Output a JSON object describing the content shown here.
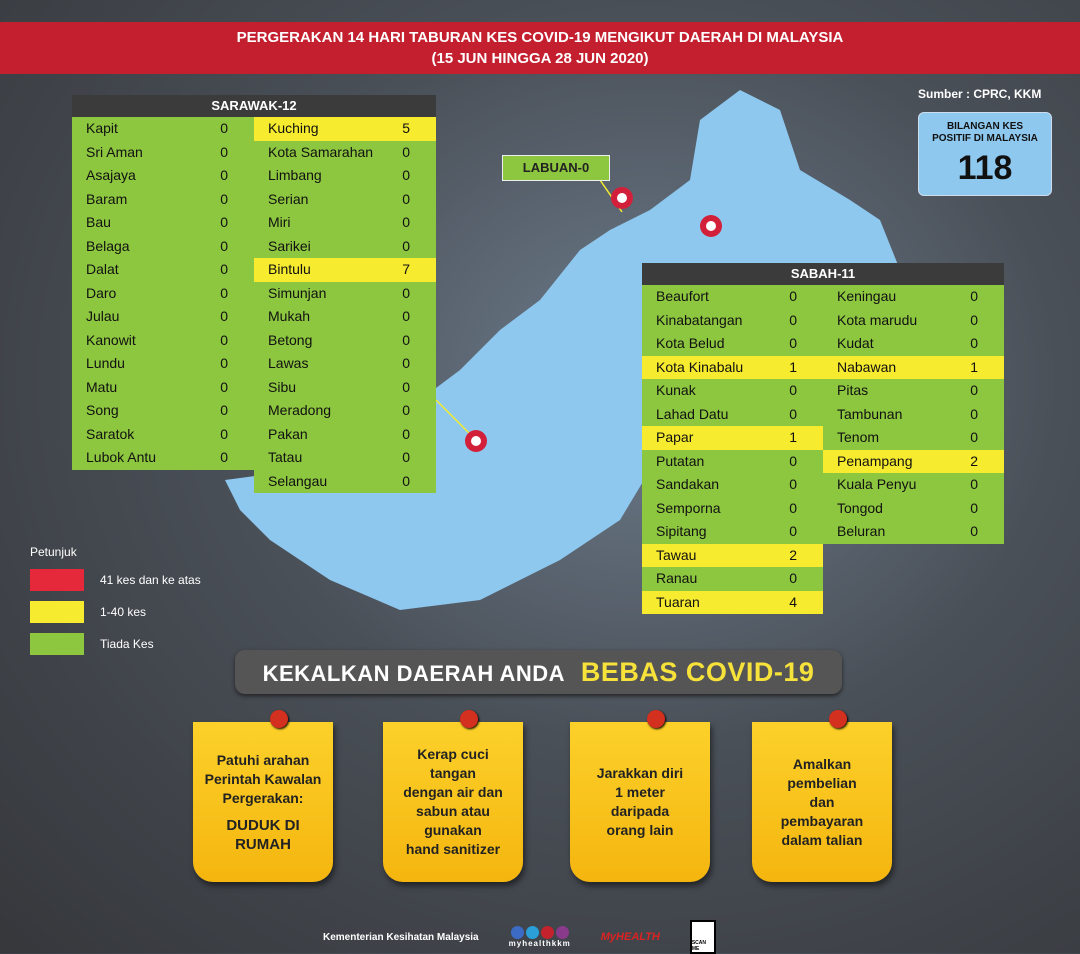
{
  "header": {
    "title": "PERGERAKAN 14 HARI TABURAN KES COVID-19 MENGIKUT DAERAH DI MALAYSIA",
    "subtitle": "(15 JUN HINGGA 28  JUN 2020)"
  },
  "colors": {
    "red": "#e5283a",
    "yellow": "#f6eb2f",
    "green": "#8dc63f",
    "map": "#8ec8ee"
  },
  "source": "Sumber : CPRC, KKM",
  "total": {
    "label1": "BILANGAN KES",
    "label2": "POSITIF DI MALAYSIA",
    "value": "118"
  },
  "labuan": "LABUAN-0",
  "sarawak": {
    "title": "SARAWAK-12",
    "left": [
      [
        "Kapit",
        "0"
      ],
      [
        "Sri Aman",
        "0"
      ],
      [
        "Asajaya",
        "0"
      ],
      [
        "Baram",
        "0"
      ],
      [
        "Bau",
        "0"
      ],
      [
        "Belaga",
        "0"
      ],
      [
        "Dalat",
        "0"
      ],
      [
        "Daro",
        "0"
      ],
      [
        "Julau",
        "0"
      ],
      [
        "Kanowit",
        "0"
      ],
      [
        "Lundu",
        "0"
      ],
      [
        "Matu",
        "0"
      ],
      [
        "Song",
        "0"
      ],
      [
        "Saratok",
        "0"
      ],
      [
        "Lubok Antu",
        "0"
      ]
    ],
    "right": [
      [
        "Kuching",
        "5"
      ],
      [
        "Kota Samarahan",
        "0"
      ],
      [
        "Limbang",
        "0"
      ],
      [
        "Serian",
        "0"
      ],
      [
        "Miri",
        "0"
      ],
      [
        "Sarikei",
        "0"
      ],
      [
        "Bintulu",
        "7"
      ],
      [
        "Simunjan",
        "0"
      ],
      [
        "Mukah",
        "0"
      ],
      [
        "Betong",
        "0"
      ],
      [
        "Lawas",
        "0"
      ],
      [
        "Sibu",
        "0"
      ],
      [
        "Meradong",
        "0"
      ],
      [
        "Pakan",
        "0"
      ],
      [
        "Tatau",
        "0"
      ],
      [
        "Selangau",
        "0"
      ]
    ]
  },
  "sabah": {
    "title": "SABAH-11",
    "left": [
      [
        "Beaufort",
        "0"
      ],
      [
        "Kinabatangan",
        "0"
      ],
      [
        "Kota Belud",
        "0"
      ],
      [
        "Kota Kinabalu",
        "1"
      ],
      [
        "Kunak",
        "0"
      ],
      [
        "Lahad Datu",
        "0"
      ],
      [
        "Papar",
        "1"
      ],
      [
        "Putatan",
        "0"
      ],
      [
        "Sandakan",
        "0"
      ],
      [
        "Semporna",
        "0"
      ],
      [
        "Sipitang",
        "0"
      ],
      [
        "Tawau",
        "2"
      ],
      [
        "Ranau",
        "0"
      ],
      [
        "Tuaran",
        "4"
      ]
    ],
    "right": [
      [
        "Keningau",
        "0"
      ],
      [
        "Kota marudu",
        "0"
      ],
      [
        "Kudat",
        "0"
      ],
      [
        "Nabawan",
        "1"
      ],
      [
        "Pitas",
        "0"
      ],
      [
        "Tambunan",
        "0"
      ],
      [
        "Tenom",
        "0"
      ],
      [
        "Penampang",
        "2"
      ],
      [
        "Kuala Penyu",
        "0"
      ],
      [
        "Tongod",
        "0"
      ],
      [
        "Beluran",
        "0"
      ]
    ]
  },
  "legend": {
    "title": "Petunjuk",
    "items": [
      "41 kes dan ke atas",
      "1-40 kes",
      "Tiada Kes"
    ]
  },
  "banner": {
    "part1": "KEKALKAN DAERAH ANDA",
    "part2": "BEBAS COVID-19"
  },
  "notes": [
    {
      "lines": [
        "Patuhi arahan",
        "Perintah Kawalan",
        "Pergerakan:"
      ],
      "emph": [
        "DUDUK DI",
        "RUMAH"
      ]
    },
    {
      "lines": [
        "Kerap cuci",
        "tangan",
        "dengan air dan",
        "sabun atau",
        "gunakan",
        "hand sanitizer"
      ]
    },
    {
      "lines": [
        "Jarakkan diri",
        "1 meter",
        "daripada",
        "orang lain"
      ]
    },
    {
      "lines": [
        "Amalkan",
        "pembelian",
        "dan",
        "pembayaran",
        "dalam talian"
      ]
    }
  ],
  "footer": {
    "ministry": "Kementerian Kesihatan Malaysia",
    "handle": "myhealthkkm",
    "logo": "MyHEALTH",
    "qr": "SCAN ME"
  }
}
